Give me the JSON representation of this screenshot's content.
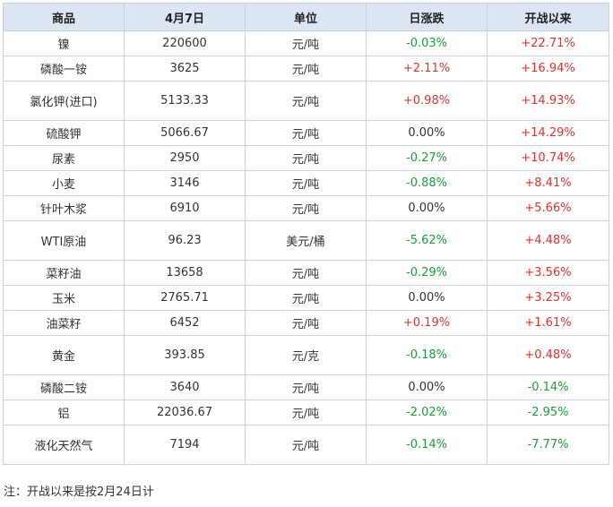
{
  "table": {
    "headers": [
      "商品",
      "4月7日",
      "单位",
      "日涨跌",
      "开战以来"
    ],
    "rows": [
      {
        "name": "镍",
        "price": "220600",
        "unit": "元/吨",
        "daily": "-0.03%",
        "since": "+22.71%",
        "tall": false
      },
      {
        "name": "磷酸一铵",
        "price": "3625",
        "unit": "元/吨",
        "daily": "+2.11%",
        "since": "+16.94%",
        "tall": false
      },
      {
        "name": "氯化钾(进口)",
        "price": "5133.33",
        "unit": "元/吨",
        "daily": "+0.98%",
        "since": "+14.93%",
        "tall": true
      },
      {
        "name": "硫酸钾",
        "price": "5066.67",
        "unit": "元/吨",
        "daily": "0.00%",
        "since": "+14.29%",
        "tall": false
      },
      {
        "name": "尿素",
        "price": "2950",
        "unit": "元/吨",
        "daily": "-0.27%",
        "since": "+10.74%",
        "tall": false
      },
      {
        "name": "小麦",
        "price": "3146",
        "unit": "元/吨",
        "daily": "-0.88%",
        "since": "+8.41%",
        "tall": false
      },
      {
        "name": "针叶木浆",
        "price": "6910",
        "unit": "元/吨",
        "daily": "0.00%",
        "since": "+5.66%",
        "tall": false
      },
      {
        "name": "WTI原油",
        "price": "96.23",
        "unit": "美元/桶",
        "daily": "-5.62%",
        "since": "+4.48%",
        "tall": true
      },
      {
        "name": "菜籽油",
        "price": "13658",
        "unit": "元/吨",
        "daily": "-0.29%",
        "since": "+3.56%",
        "tall": false
      },
      {
        "name": "玉米",
        "price": "2765.71",
        "unit": "元/吨",
        "daily": "0.00%",
        "since": "+3.25%",
        "tall": false
      },
      {
        "name": "油菜籽",
        "price": "6452",
        "unit": "元/吨",
        "daily": "+0.19%",
        "since": "+1.61%",
        "tall": false
      },
      {
        "name": "黄金",
        "price": "393.85",
        "unit": "元/克",
        "daily": "-0.18%",
        "since": "+0.48%",
        "tall": true
      },
      {
        "name": "磷酸二铵",
        "price": "3640",
        "unit": "元/吨",
        "daily": "0.00%",
        "since": "-0.14%",
        "tall": false
      },
      {
        "name": "铝",
        "price": "22036.67",
        "unit": "元/吨",
        "daily": "-2.02%",
        "since": "-2.95%",
        "tall": false
      },
      {
        "name": "液化天然气",
        "price": "7194",
        "unit": "元/吨",
        "daily": "-0.14%",
        "since": "-7.77%",
        "tall": true
      }
    ]
  },
  "colors": {
    "up": "#e0312e",
    "down": "#1f9a3e",
    "flat": "#333333",
    "header_bg": "#dbe6f2",
    "border": "#c9d3de"
  },
  "note": "注：开战以来是按2月24日计"
}
